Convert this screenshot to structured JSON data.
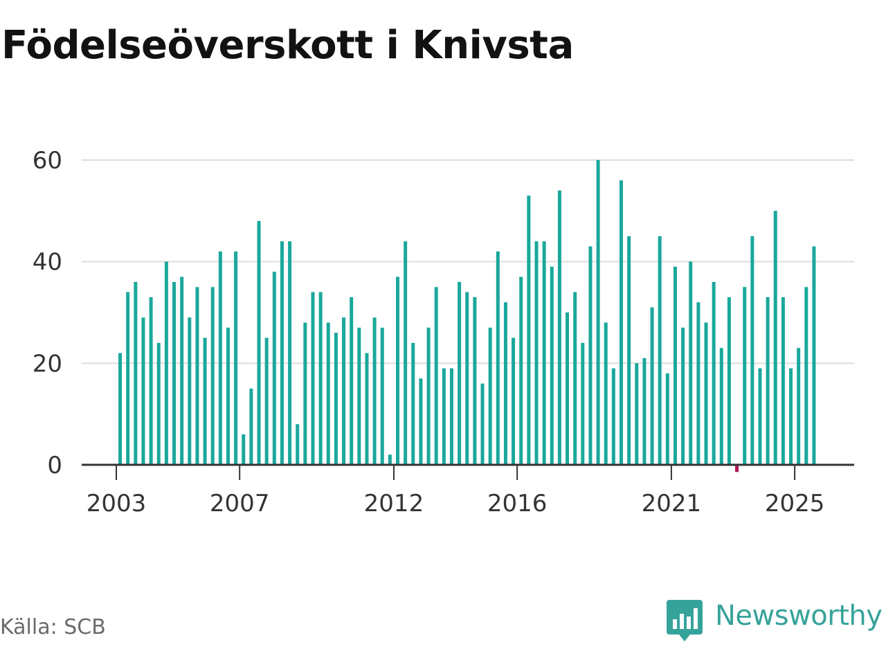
{
  "title": "Födelseöverskott i Knivsta",
  "source": "Källa: SCB",
  "brand": {
    "name": "Newsworthy",
    "logo_icon": "newsworthy-logo-icon"
  },
  "colors": {
    "positive": "#1aa89b",
    "negative": "#b0115a",
    "grid": "#dddddd",
    "axis": "#333333"
  },
  "chart_data": {
    "type": "bar",
    "title": "Födelseöverskott i Knivsta",
    "xlabel": "",
    "ylabel": "",
    "ylim": [
      0,
      60
    ],
    "yticks": [
      0,
      20,
      40,
      60
    ],
    "grid": true,
    "x_tick_labels": [
      "2003",
      "2007",
      "2012",
      "2016",
      "2021",
      "2025"
    ],
    "first_period": "2003 Q1",
    "frequency": "quarterly",
    "values": [
      22,
      34,
      36,
      29,
      33,
      24,
      40,
      36,
      37,
      29,
      35,
      25,
      35,
      42,
      27,
      42,
      6,
      15,
      48,
      25,
      38,
      44,
      44,
      8,
      28,
      34,
      34,
      28,
      26,
      29,
      33,
      27,
      22,
      29,
      27,
      2,
      37,
      44,
      24,
      17,
      27,
      35,
      19,
      19,
      36,
      34,
      33,
      16,
      27,
      42,
      32,
      25,
      37,
      53,
      44,
      44,
      39,
      54,
      30,
      34,
      24,
      43,
      60,
      28,
      19,
      56,
      45,
      20,
      21,
      31,
      45,
      18,
      39,
      27,
      40,
      32,
      28,
      36,
      23,
      33,
      -1,
      35,
      45,
      19,
      33,
      50,
      33,
      19,
      23,
      35,
      43
    ]
  }
}
